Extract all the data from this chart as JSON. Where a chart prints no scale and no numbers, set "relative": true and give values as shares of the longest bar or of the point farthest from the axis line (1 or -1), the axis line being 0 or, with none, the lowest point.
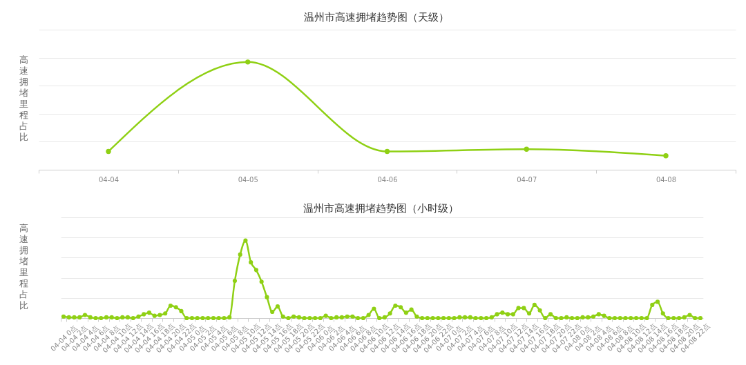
{
  "chart_data": [
    {
      "type": "line",
      "title": "温州市高速拥堵趋势图（天级）",
      "ylabel": "高速拥堵里程占比",
      "categories": [
        "04-04",
        "04-05",
        "04-06",
        "04-07",
        "04-08"
      ],
      "series": [
        {
          "color": "#8fd014",
          "values": [
            0.17,
            1,
            0.17,
            0.19,
            0.13
          ]
        }
      ],
      "relative": true,
      "grid": "y",
      "marker": "circle"
    },
    {
      "type": "line",
      "title": "温州市高速拥堵趋势图（小时级）",
      "ylabel": "高速拥堵里程占比",
      "categories": [
        "04-04 0点",
        null,
        "04-04 2点",
        null,
        "04-04 4点",
        null,
        "04-04 6点",
        null,
        "04-04 8点",
        null,
        "04-04 10点",
        null,
        "04-04 12点",
        null,
        "04-04 14点",
        null,
        "04-04 16点",
        null,
        "04-04 18点",
        null,
        "04-04 20点",
        null,
        "04-04 22点",
        null,
        "04-05 0点",
        null,
        "04-05 2点",
        null,
        "04-05 4点",
        null,
        "04-05 6点",
        null,
        "04-05 8点",
        null,
        "04-05 10点",
        null,
        "04-05 12点",
        null,
        "04-05 14点",
        null,
        "04-05 16点",
        null,
        "04-05 18点",
        null,
        "04-05 20点",
        null,
        "04-05 22点",
        null,
        "04-06 0点",
        null,
        "04-06 2点",
        null,
        "04-06 4点",
        null,
        "04-06 6点",
        null,
        "04-06 8点",
        null,
        "04-06 10点",
        null,
        "04-06 12点",
        null,
        "04-06 14点",
        null,
        "04-06 16点",
        null,
        "04-06 18点",
        null,
        "04-06 20点",
        null,
        "04-06 22点",
        null,
        "04-07 0点",
        null,
        "04-07 2点",
        null,
        "04-07 4点",
        null,
        "04-07 6点",
        null,
        "04-07 8点",
        null,
        "04-07 10点",
        null,
        "04-07 12点",
        null,
        "04-07 14点",
        null,
        "04-07 16点",
        null,
        "04-07 18点",
        null,
        "04-07 20点",
        null,
        "04-07 22点",
        null,
        "04-08 0点",
        null,
        "04-08 2点",
        null,
        "04-08 4点",
        null,
        "04-08 6点",
        null,
        "04-08 8点",
        null,
        "04-08 10点",
        null,
        "04-08 12点",
        null,
        "04-08 14点",
        null,
        "04-08 16点",
        null,
        "04-08 18点",
        null,
        "04-08 20点",
        null,
        "04-08 22点",
        null
      ],
      "series": [
        {
          "color": "#8fd014",
          "values": [
            0.02,
            0.01,
            0.01,
            0.01,
            0.04,
            0.01,
            0,
            0,
            0.01,
            0.01,
            0,
            0.01,
            0.01,
            0,
            0.02,
            0.05,
            0.07,
            0.03,
            0.04,
            0.06,
            0.16,
            0.14,
            0.09,
            0,
            0,
            0,
            0,
            0,
            0,
            0,
            0,
            0.01,
            0.48,
            0.82,
            1,
            0.72,
            0.62,
            0.47,
            0.27,
            0.08,
            0.15,
            0.02,
            0,
            0.02,
            0.01,
            0,
            0,
            0,
            0,
            0.03,
            0,
            0.01,
            0.01,
            0.02,
            0.02,
            0,
            0,
            0.04,
            0.12,
            0,
            0.01,
            0.06,
            0.16,
            0.14,
            0.07,
            0.11,
            0.02,
            0,
            0,
            0,
            0,
            0,
            0,
            0,
            0.01,
            0.01,
            0.01,
            0,
            0,
            0,
            0.01,
            0.05,
            0.07,
            0.05,
            0.05,
            0.13,
            0.13,
            0.06,
            0.17,
            0.1,
            0,
            0.05,
            0,
            0,
            0.01,
            0,
            0,
            0.01,
            0.01,
            0.02,
            0.05,
            0.03,
            0,
            0,
            0,
            0,
            0,
            0,
            0,
            0,
            0.17,
            0.21,
            0.06,
            0,
            0,
            0,
            0.01,
            0.04,
            0,
            0
          ]
        }
      ],
      "relative": true,
      "grid": "y",
      "marker": "circle"
    }
  ]
}
